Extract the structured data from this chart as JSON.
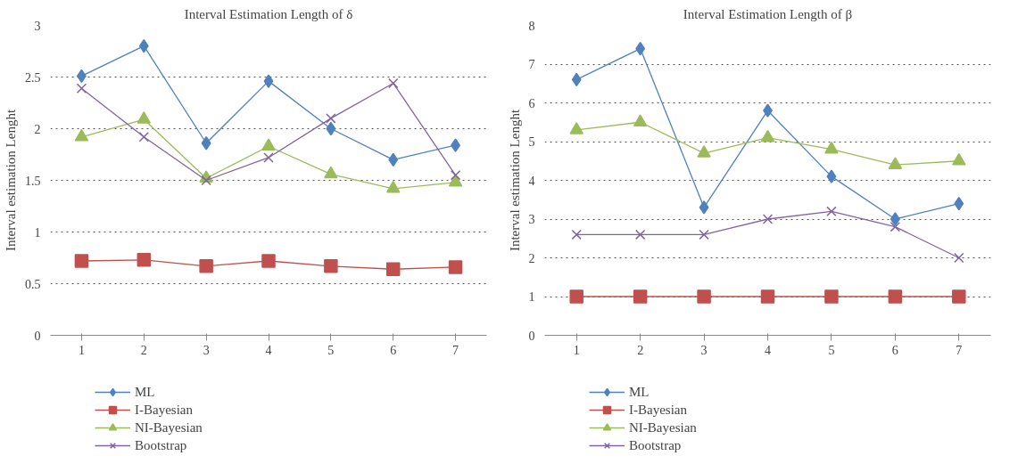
{
  "chart_data": [
    {
      "type": "line",
      "title": "Interval Estimation Length of δ",
      "ylabel": "Interval estimation Lenght",
      "categories": [
        "1",
        "2",
        "3",
        "4",
        "5",
        "6",
        "7"
      ],
      "ylim": [
        0,
        3
      ],
      "yticks": [
        0,
        0.5,
        1,
        1.5,
        2,
        2.5,
        3
      ],
      "grid": "y",
      "legend": "bottom",
      "line_style": "solid",
      "series": [
        {
          "name": "ML",
          "color": "#4f81bd",
          "marker": "diamond",
          "values": [
            2.51,
            2.8,
            1.86,
            2.46,
            2.0,
            1.7,
            1.84
          ]
        },
        {
          "name": "I-Bayesian",
          "color": "#c0504d",
          "marker": "square",
          "values": [
            0.72,
            0.73,
            0.67,
            0.72,
            0.67,
            0.64,
            0.66
          ]
        },
        {
          "name": "NI-Bayesian",
          "color": "#9bbb59",
          "marker": "triangle",
          "values": [
            1.92,
            2.09,
            1.52,
            1.83,
            1.56,
            1.42,
            1.48
          ]
        },
        {
          "name": "Bootstrap",
          "color": "#8064a2",
          "marker": "cross",
          "values": [
            2.39,
            1.92,
            1.5,
            1.72,
            2.1,
            2.44,
            1.55
          ]
        }
      ]
    },
    {
      "type": "line",
      "title": "Interval Estimation Length of β",
      "ylabel": "Interval estimation Lenght",
      "categories": [
        "1",
        "2",
        "3",
        "4",
        "5",
        "6",
        "7"
      ],
      "ylim": [
        0,
        8
      ],
      "yticks": [
        0,
        1,
        2,
        3,
        4,
        5,
        6,
        7,
        8
      ],
      "grid": "y",
      "legend": "bottom",
      "line_style": "solid",
      "series": [
        {
          "name": "ML",
          "color": "#4f81bd",
          "marker": "diamond",
          "values": [
            6.6,
            7.4,
            3.3,
            5.8,
            4.1,
            3.0,
            3.4
          ]
        },
        {
          "name": "I-Bayesian",
          "color": "#c0504d",
          "marker": "square",
          "values": [
            1.0,
            1.0,
            1.0,
            1.0,
            1.0,
            1.0,
            1.0
          ]
        },
        {
          "name": "NI-Bayesian",
          "color": "#9bbb59",
          "marker": "triangle",
          "values": [
            5.3,
            5.5,
            4.7,
            5.1,
            4.8,
            4.4,
            4.5
          ]
        },
        {
          "name": "Bootstrap",
          "color": "#8064a2",
          "marker": "cross",
          "values": [
            2.6,
            2.6,
            2.6,
            3.0,
            3.2,
            2.8,
            2.0
          ]
        }
      ]
    }
  ]
}
